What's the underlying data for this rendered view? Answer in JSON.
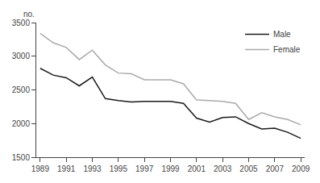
{
  "chart_data": {
    "type": "line",
    "ylabel": "no.",
    "x": [
      1989,
      1990,
      1991,
      1992,
      1993,
      1994,
      1995,
      1996,
      1997,
      1998,
      1999,
      2000,
      2001,
      2002,
      2003,
      2004,
      2005,
      2006,
      2007,
      2008,
      2009
    ],
    "series": [
      {
        "name": "Male",
        "color": "#1a1a1a",
        "values": [
          2820,
          2720,
          2680,
          2560,
          2690,
          2370,
          2340,
          2320,
          2330,
          2330,
          2330,
          2300,
          2080,
          2020,
          2090,
          2100,
          2000,
          1920,
          1930,
          1870,
          1780
        ]
      },
      {
        "name": "Female",
        "color": "#aaaaaa",
        "values": [
          3340,
          3200,
          3130,
          2950,
          3090,
          2870,
          2750,
          2740,
          2650,
          2650,
          2650,
          2590,
          2350,
          2340,
          2330,
          2300,
          2060,
          2160,
          2100,
          2060,
          1980
        ]
      }
    ],
    "xlim": [
      1988.7,
      2009.3
    ],
    "xticks": [
      1989,
      1991,
      1993,
      1995,
      1997,
      1999,
      2001,
      2003,
      2005,
      2007,
      2009
    ],
    "ylim": [
      1500,
      3500
    ],
    "yticks": [
      1500,
      2000,
      2500,
      3000,
      3500
    ],
    "grid": false,
    "legend": "upper right"
  }
}
